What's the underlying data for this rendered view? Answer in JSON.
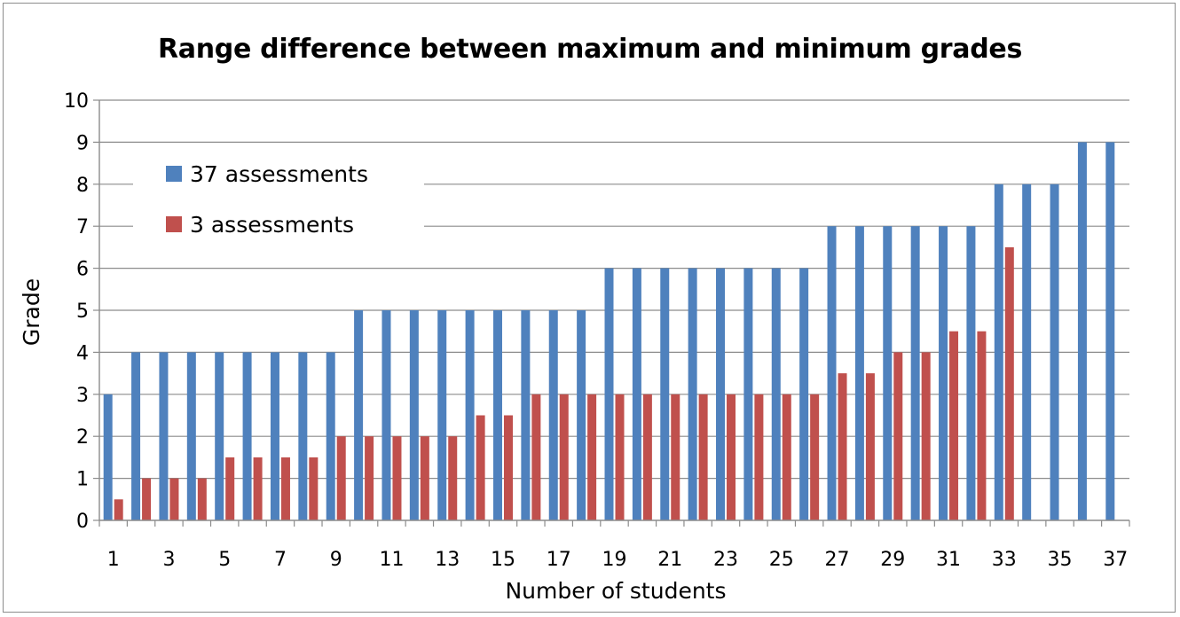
{
  "chart_data": {
    "type": "bar",
    "title": "Range difference between maximum and minimum grades",
    "xlabel": "Number of students",
    "ylabel": "Grade",
    "ylim": [
      0,
      10
    ],
    "yticks": [
      0,
      1,
      2,
      3,
      4,
      5,
      6,
      7,
      8,
      9,
      10
    ],
    "categories": [
      1,
      2,
      3,
      4,
      5,
      6,
      7,
      8,
      9,
      10,
      11,
      12,
      13,
      14,
      15,
      16,
      17,
      18,
      19,
      20,
      21,
      22,
      23,
      24,
      25,
      26,
      27,
      28,
      29,
      30,
      31,
      32,
      33,
      34,
      35,
      36,
      37
    ],
    "xtick_labels": [
      "1",
      "3",
      "5",
      "7",
      "9",
      "11",
      "13",
      "15",
      "17",
      "19",
      "21",
      "23",
      "25",
      "27",
      "29",
      "31",
      "33",
      "35",
      "37"
    ],
    "series": [
      {
        "name": "37 assessments",
        "color": "#4f81bd",
        "values": [
          3,
          4,
          4,
          4,
          4,
          4,
          4,
          4,
          4,
          5,
          5,
          5,
          5,
          5,
          5,
          5,
          5,
          5,
          6,
          6,
          6,
          6,
          6,
          6,
          6,
          6,
          7,
          7,
          7,
          7,
          7,
          7,
          8,
          8,
          8,
          9,
          9
        ]
      },
      {
        "name": "3 assessments",
        "color": "#c0504d",
        "values": [
          0.5,
          1,
          1,
          1,
          1.5,
          1.5,
          1.5,
          1.5,
          2,
          2,
          2,
          2,
          2,
          2.5,
          2.5,
          3,
          3,
          3,
          3,
          3,
          3,
          3,
          3,
          3,
          3,
          3,
          3.5,
          3.5,
          4,
          4,
          4.5,
          4.5,
          6.5,
          0,
          0,
          0,
          0
        ]
      }
    ],
    "grid": true,
    "legend_position": "upper-left inside plot"
  }
}
